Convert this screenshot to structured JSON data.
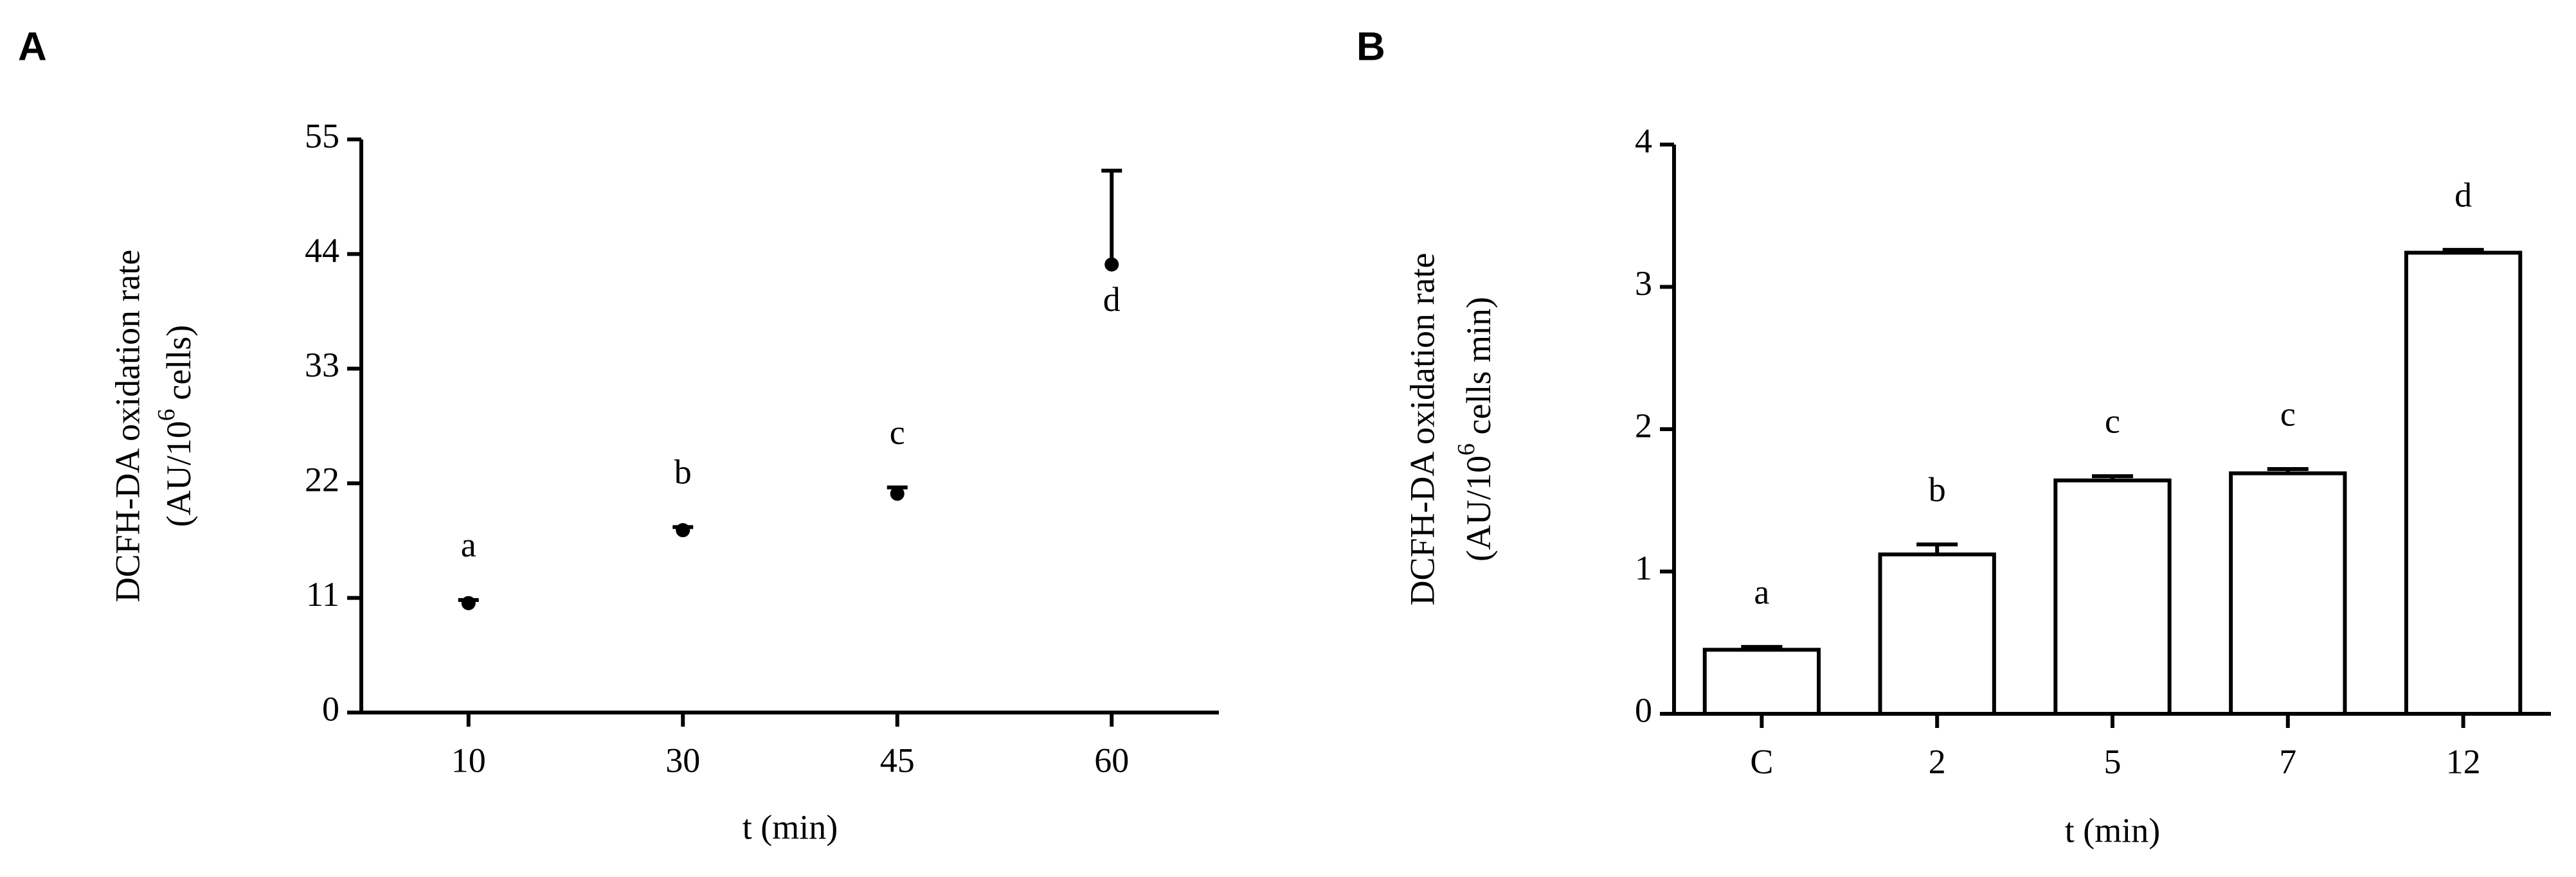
{
  "panels": [
    "A",
    "B"
  ],
  "chart_data": [
    {
      "type": "scatter",
      "categories": [
        "10",
        "30",
        "45",
        "60"
      ],
      "values": [
        10.5,
        17.5,
        21,
        43
      ],
      "errors": [
        0.3,
        0.3,
        0.6,
        9
      ],
      "annotations": [
        "a",
        "b",
        "c",
        "d"
      ],
      "color": "#000000",
      "ylim": [
        0,
        55
      ],
      "yticks": [
        0,
        11,
        22,
        33,
        44,
        55
      ],
      "xlabel": "t (min)",
      "ylabel": {
        "line1": "DCFH-DA oxidation rate",
        "pre": "(AU/10",
        "sup": "6",
        "post": " cells)"
      }
    },
    {
      "type": "bar",
      "categories": [
        "C",
        "2",
        "5",
        "7",
        "12"
      ],
      "values": [
        0.45,
        1.12,
        1.64,
        1.69,
        3.24
      ],
      "errors": [
        0.02,
        0.07,
        0.03,
        0.03,
        0.02
      ],
      "annotations": [
        "a",
        "b",
        "c",
        "c",
        "d"
      ],
      "color": "#ffffff",
      "ylim": [
        0,
        4
      ],
      "yticks": [
        0,
        1,
        2,
        3,
        4
      ],
      "xlabel": "t (min)",
      "ylabel": {
        "line1": "DCFH-DA oxidation rate",
        "pre": "(AU/10",
        "sup": "6",
        "post": " cells min)"
      }
    }
  ]
}
